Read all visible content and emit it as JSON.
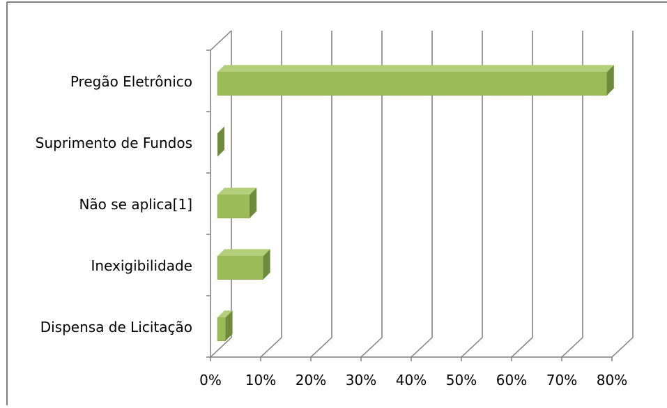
{
  "chart_data": {
    "type": "bar",
    "orientation": "horizontal",
    "style": "3d",
    "title": "",
    "xlabel": "",
    "ylabel": "",
    "categories": [
      "Dispensa de Licitação",
      "Inexigibilidade",
      "Não se aplica[1]",
      "Suprimento de Fundos",
      "Pregão Eletrônico"
    ],
    "values": [
      0.03,
      0.105,
      0.078,
      0.0,
      0.79
    ],
    "xlim": [
      0,
      0.8
    ],
    "x_ticks": [
      "0%",
      "10%",
      "20%",
      "30%",
      "40%",
      "50%",
      "60%",
      "70%",
      "80%"
    ],
    "grid": true,
    "legend": "none",
    "colors": {
      "bar_front": "#9bbb59",
      "bar_top": "#b3cf7a",
      "bar_side": "#6f8a3a",
      "grid": "#7f7f7f",
      "border": "#808080"
    }
  }
}
